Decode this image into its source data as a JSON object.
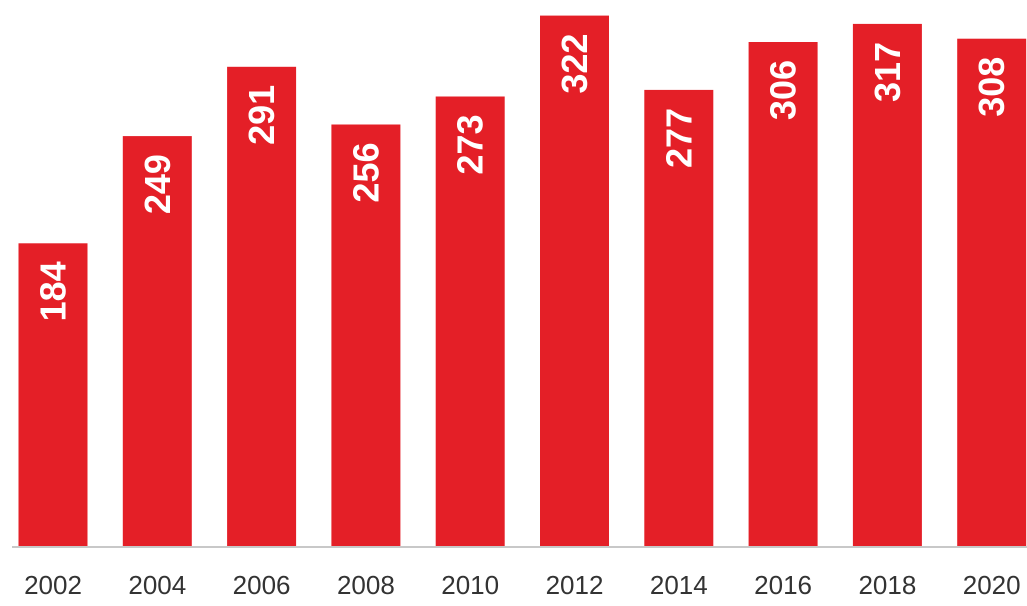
{
  "chart_data": {
    "type": "bar",
    "categories": [
      "2002",
      "2004",
      "2006",
      "2008",
      "2010",
      "2012",
      "2014",
      "2016",
      "2018",
      "2020"
    ],
    "values": [
      184,
      249,
      291,
      256,
      273,
      322,
      277,
      306,
      317,
      308
    ],
    "title": "",
    "xlabel": "",
    "ylabel": "",
    "ylim": [
      0,
      326
    ],
    "grid": false,
    "legend": "none",
    "data_labels": "inside-top-rotated",
    "bar_color": "#e41f27",
    "axis_color": "#c8c8c8"
  }
}
